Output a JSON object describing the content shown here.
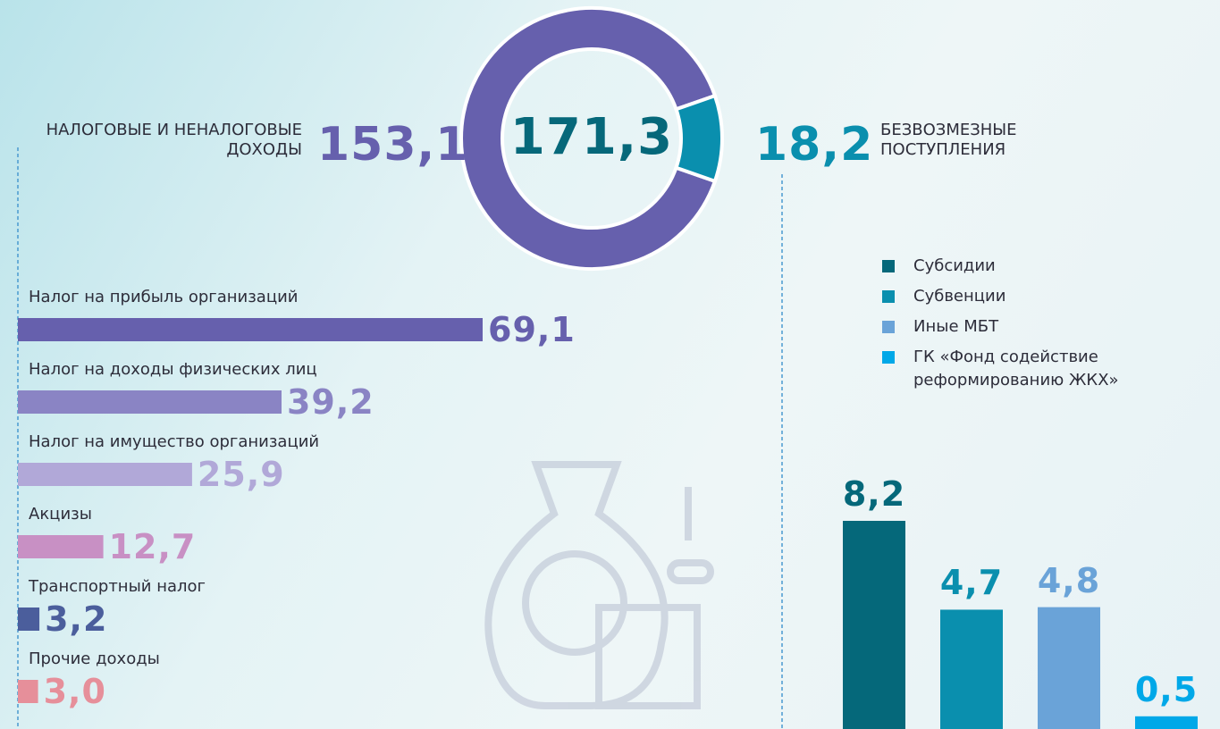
{
  "chart_data": [
    {
      "type": "donut",
      "total": {
        "value": 171.3,
        "label": "171,3"
      },
      "categories": [
        "НАЛОГОВЫЕ И НЕНАЛОГОВЫЕ ДОХОДЫ",
        "БЕЗВОЗМЕЗНЫЕ ПОСТУПЛЕНИЯ"
      ],
      "values": [
        153.1,
        18.2
      ],
      "value_labels": [
        "153,1",
        "18,2"
      ],
      "colors": [
        "#6660ad",
        "#0a8fae"
      ],
      "total_color": "#06687a"
    },
    {
      "type": "hbar",
      "categories": [
        "Налог на прибыль организаций",
        "Налог на доходы физических лиц",
        "Налог на имущество организаций",
        "Акцизы",
        "Транспортный налог",
        "Прочие доходы"
      ],
      "values": [
        69.1,
        39.2,
        25.9,
        12.7,
        3.2,
        3.0
      ],
      "value_labels": [
        "69,1",
        "39,2",
        "25,9",
        "12,7",
        "3,2",
        "3,0"
      ],
      "colors": [
        "#6660ad",
        "#8a84c4",
        "#b1a8d8",
        "#c890c4",
        "#4b5e9c",
        "#e68f9a"
      ]
    },
    {
      "type": "vbar",
      "series": [
        {
          "name": "Субсидии",
          "color": "#05687a",
          "values": [
            8.2
          ],
          "value_labels": [
            "8,2"
          ]
        },
        {
          "name": "Субвенции",
          "color": "#0a8fae",
          "values": [
            4.7
          ],
          "value_labels": [
            "4,7"
          ]
        },
        {
          "name": "Иные МБТ",
          "color": "#6aa3d8",
          "values": [
            4.8
          ],
          "value_labels": [
            "4,8"
          ]
        },
        {
          "name": "ГК «Фонд содействие реформированию ЖКХ»",
          "color": "#00a8e8",
          "values": [
            0.5
          ],
          "value_labels": [
            "0,5"
          ]
        }
      ]
    }
  ]
}
